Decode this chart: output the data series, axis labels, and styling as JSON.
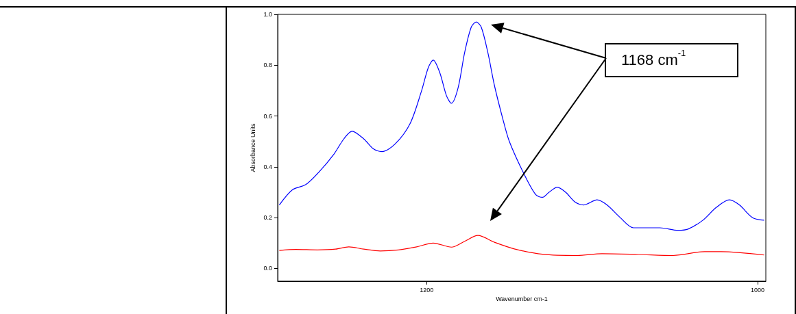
{
  "chart_data": {
    "type": "line",
    "xlabel": "Wavenumber cm-1",
    "ylabel": "Absorbance Units",
    "annotations": [
      "1168 cm$^{-1}$"
    ],
    "xlim": [
      1290,
      995
    ],
    "xticks": [
      1200,
      1000
    ],
    "ylim": [
      -0.05,
      1.0
    ],
    "yticks": [
      {
        "value": 0,
        "label": "0.0"
      },
      {
        "value": 0.2,
        "label": "0.2"
      },
      {
        "value": 0.4,
        "label": "0.4"
      },
      {
        "value": 0.6,
        "label": "0.6"
      },
      {
        "value": 0.8,
        "label": "0.8"
      },
      {
        "value": 1,
        "label": "1.0"
      }
    ],
    "grid": false,
    "marker": "none",
    "line_style": "solid",
    "series": [
      {
        "color": "#0000ff",
        "x": [
          1289,
          1281,
          1273,
          1265,
          1256,
          1250,
          1245,
          1238,
          1232,
          1227,
          1219,
          1210,
          1203,
          1199,
          1196,
          1192,
          1188,
          1185,
          1181,
          1177,
          1173,
          1170,
          1167,
          1163,
          1159,
          1154,
          1150,
          1141,
          1134,
          1130,
          1126,
          1121,
          1116,
          1110,
          1105,
          1097,
          1091,
          1083,
          1075,
          1070,
          1059,
          1048,
          1042,
          1033,
          1025,
          1017,
          1011,
          1003,
          996
        ],
        "values": [
          0.25,
          0.31,
          0.33,
          0.38,
          0.45,
          0.51,
          0.54,
          0.51,
          0.47,
          0.46,
          0.49,
          0.57,
          0.7,
          0.79,
          0.82,
          0.77,
          0.68,
          0.65,
          0.71,
          0.85,
          0.95,
          0.97,
          0.95,
          0.85,
          0.72,
          0.59,
          0.5,
          0.37,
          0.29,
          0.28,
          0.3,
          0.32,
          0.3,
          0.26,
          0.25,
          0.27,
          0.25,
          0.2,
          0.16,
          0.16,
          0.16,
          0.15,
          0.155,
          0.19,
          0.24,
          0.27,
          0.25,
          0.2,
          0.19
        ]
      },
      {
        "color": "#ff0000",
        "x": [
          1289,
          1279,
          1266,
          1255,
          1247,
          1238,
          1228,
          1217,
          1206,
          1196,
          1185,
          1177,
          1169,
          1159,
          1147,
          1130,
          1109,
          1094,
          1072,
          1051,
          1032,
          1022,
          996
        ],
        "values": [
          0.071,
          0.075,
          0.073,
          0.076,
          0.085,
          0.076,
          0.069,
          0.073,
          0.085,
          0.1,
          0.084,
          0.107,
          0.13,
          0.103,
          0.077,
          0.056,
          0.051,
          0.058,
          0.055,
          0.051,
          0.066,
          0.066,
          0.053
        ]
      }
    ]
  }
}
